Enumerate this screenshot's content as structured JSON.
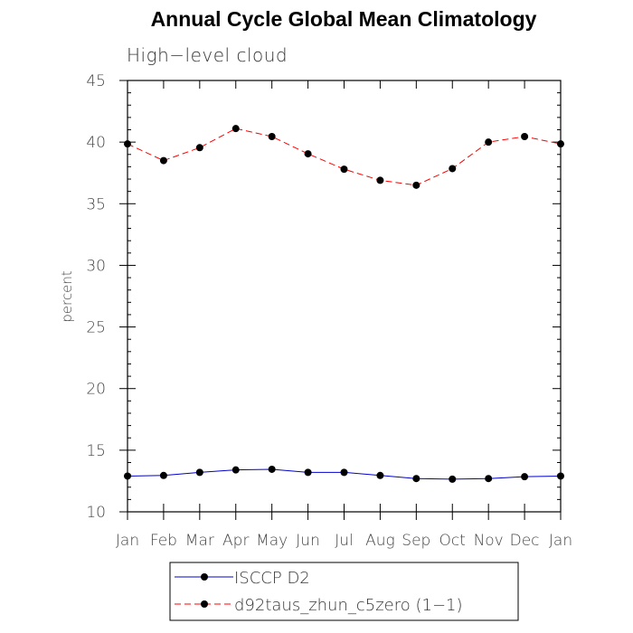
{
  "chart_data": {
    "type": "line",
    "title": "Annual Cycle Global Mean Climatology",
    "subtitle": "High−level cloud",
    "xlabel": "",
    "ylabel": "percent",
    "ylim": [
      10,
      45
    ],
    "yticks": [
      10,
      15,
      20,
      25,
      30,
      35,
      40,
      45
    ],
    "categories": [
      "Jan",
      "Feb",
      "Mar",
      "Apr",
      "May",
      "Jun",
      "Jul",
      "Aug",
      "Sep",
      "Oct",
      "Nov",
      "Dec",
      "Jan"
    ],
    "series": [
      {
        "name": "ISCCP D2",
        "color": "#0000cc",
        "style": "solid",
        "values": [
          12.9,
          12.95,
          13.2,
          13.4,
          13.45,
          13.2,
          13.2,
          12.95,
          12.7,
          12.65,
          12.7,
          12.85,
          12.9
        ]
      },
      {
        "name": "d92taus_zhun_c5zero (1−1)",
        "color": "#ff0000",
        "style": "dashed",
        "values": [
          39.85,
          38.5,
          39.55,
          41.1,
          40.45,
          39.05,
          37.8,
          36.9,
          36.5,
          37.85,
          40.0,
          40.45,
          39.85
        ]
      }
    ],
    "grid": false,
    "legend_position": "bottom-center"
  }
}
